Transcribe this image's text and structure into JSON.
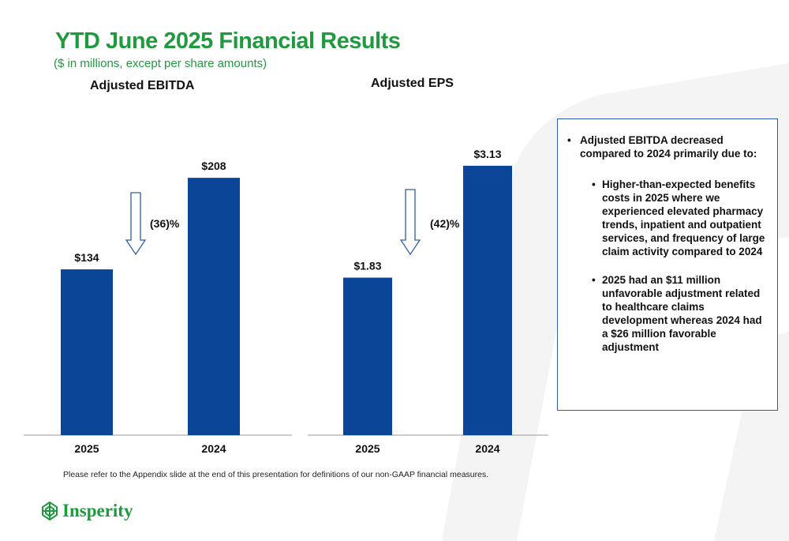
{
  "page": {
    "title": "YTD June 2025 Financial Results",
    "subtitle": "($ in millions, except per share amounts)",
    "footnote": "Please refer to the Appendix slide at the end of this presentation for definitions of our non-GAAP financial measures.",
    "logo_text": "Insperity"
  },
  "colors": {
    "bar": "#0b4597",
    "title_green": "#1f9a3e",
    "arrow": "#2d5fa6",
    "axis": "#9a9a9a"
  },
  "chart_data": [
    {
      "type": "bar",
      "title": "Adjusted EBITDA",
      "categories": [
        "2025",
        "2024"
      ],
      "values": [
        134,
        208
      ],
      "value_labels": [
        "$134",
        "$208"
      ],
      "ylim": [
        0,
        240
      ],
      "annotation": "(36)%",
      "grid": false,
      "legend": "none"
    },
    {
      "type": "bar",
      "title": "Adjusted EPS",
      "categories": [
        "2025",
        "2024"
      ],
      "values": [
        1.83,
        3.13
      ],
      "value_labels": [
        "$1.83",
        "$3.13"
      ],
      "ylim": [
        0,
        3.45
      ],
      "annotation": "(42)%",
      "grid": false,
      "legend": "none"
    }
  ],
  "callout": {
    "main": "Adjusted EBITDA decreased compared to 2024 primarily due to:",
    "sub": [
      "Higher-than-expected benefits costs in 2025 where we experienced elevated pharmacy trends, inpatient and outpatient services, and frequency of large claim activity compared to 2024",
      "2025 had an $11 million unfavorable adjustment related to healthcare claims development whereas 2024 had a $26 million favorable adjustment"
    ]
  }
}
